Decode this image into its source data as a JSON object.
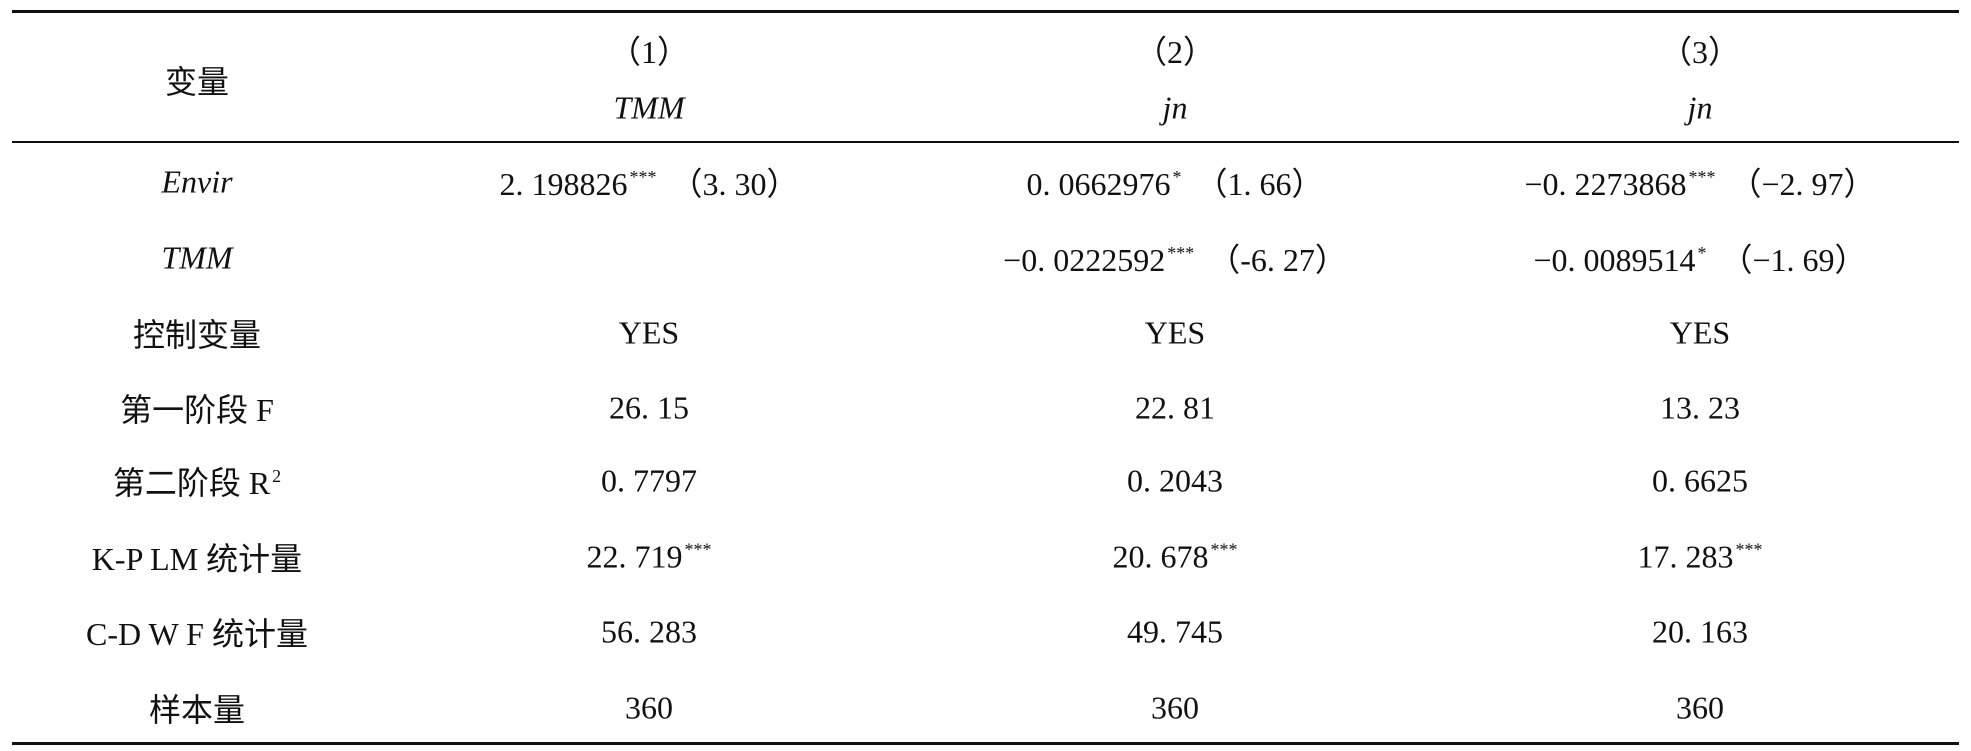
{
  "table": {
    "header": {
      "row_label": "变量",
      "columns": [
        {
          "number": "（1）",
          "dependent": "TMM"
        },
        {
          "number": "（2）",
          "dependent": "jn"
        },
        {
          "number": "（3）",
          "dependent": "jn"
        }
      ]
    },
    "italic_dependents": true,
    "rows": [
      {
        "label": "Envir",
        "italic": true,
        "cells": [
          {
            "coef": "2. 198826",
            "stars": "***",
            "t": "（3. 30）"
          },
          {
            "coef": "0. 0662976",
            "stars": "*",
            "t": "（1. 66）"
          },
          {
            "coef": "−0. 2273868",
            "stars": "***",
            "t": "（−2. 97）"
          }
        ]
      },
      {
        "label": "TMM",
        "italic": true,
        "cells": [
          null,
          {
            "coef": "−0. 0222592",
            "stars": "***",
            "t": "（-6. 27）"
          },
          {
            "coef": "−0. 0089514",
            "stars": "*",
            "t": "（−1. 69）"
          }
        ]
      },
      {
        "label": "控制变量",
        "cells": [
          {
            "coef": "YES"
          },
          {
            "coef": "YES"
          },
          {
            "coef": "YES"
          }
        ]
      },
      {
        "label": "第一阶段 F",
        "cells": [
          {
            "coef": "26. 15"
          },
          {
            "coef": "22. 81"
          },
          {
            "coef": "13. 23"
          }
        ]
      },
      {
        "label": "第二阶段 R",
        "label_sup": "2",
        "cells": [
          {
            "coef": "0. 7797"
          },
          {
            "coef": "0. 2043"
          },
          {
            "coef": "0. 6625"
          }
        ]
      },
      {
        "label": "K-P LM 统计量",
        "cells": [
          {
            "coef": "22. 719",
            "stars": "***"
          },
          {
            "coef": "20. 678",
            "stars": "***"
          },
          {
            "coef": "17. 283",
            "stars": "***"
          }
        ]
      },
      {
        "label": "C-D W F 统计量",
        "cells": [
          {
            "coef": "56. 283"
          },
          {
            "coef": "49. 745"
          },
          {
            "coef": "20. 163"
          }
        ]
      },
      {
        "label": "样本量",
        "cells": [
          {
            "coef": "360"
          },
          {
            "coef": "360"
          },
          {
            "coef": "360"
          }
        ]
      }
    ]
  }
}
